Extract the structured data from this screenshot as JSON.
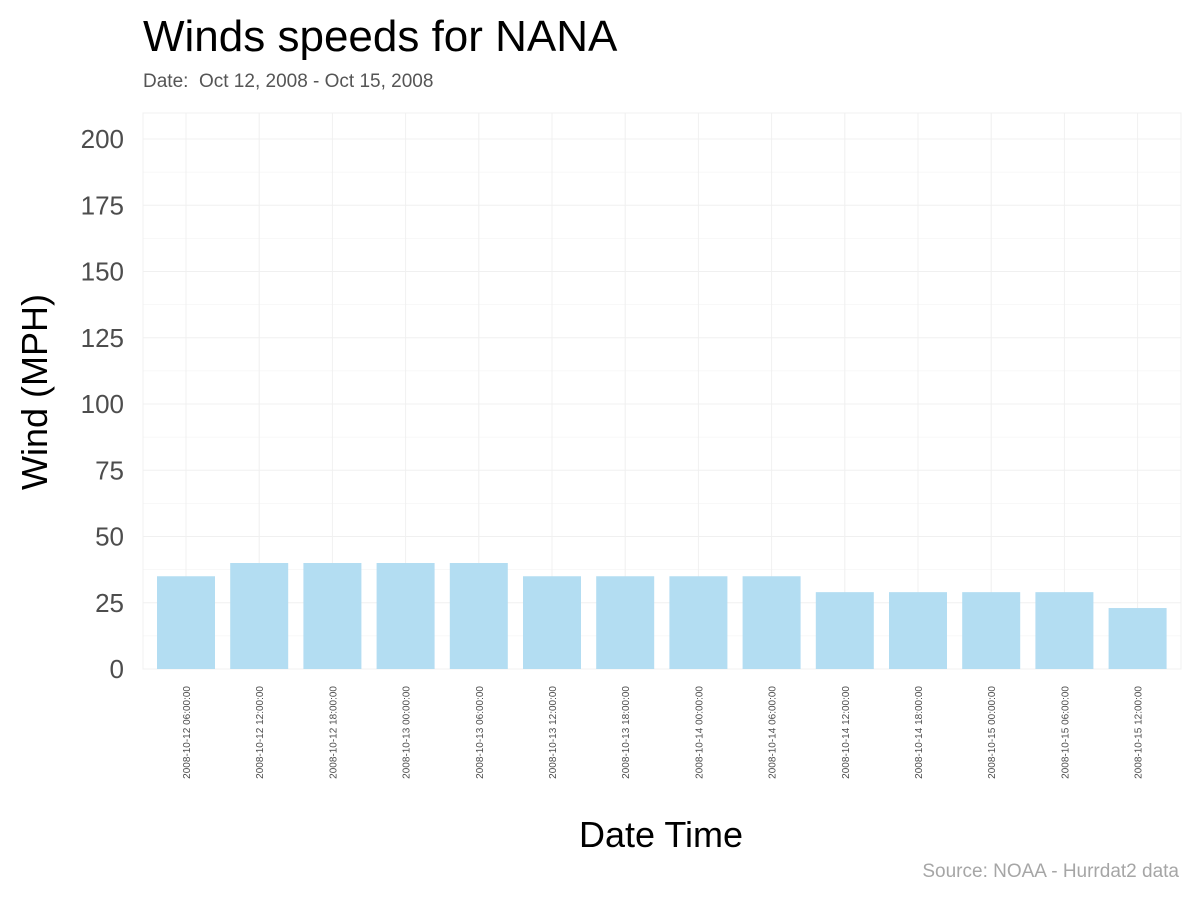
{
  "colors": {
    "bar_fill": "#b3ddf2",
    "grid": "#f0f0f0",
    "title": "#000000",
    "subtitle": "#555555",
    "caption": "#a6a6a6",
    "tick_text": "#4d4d4d"
  },
  "chart_data": {
    "type": "bar",
    "title": "Winds speeds for NANA",
    "subtitle": "Date:  Oct 12, 2008 - Oct 15, 2008",
    "caption": "Source: NOAA - Hurrdat2 data",
    "xlabel": "Date Time",
    "ylabel": "Wind (MPH)",
    "ylim": [
      0,
      200
    ],
    "yticks": [
      0,
      25,
      50,
      75,
      100,
      125,
      150,
      175,
      200
    ],
    "grid": true,
    "categories": [
      "2008-10-12 06:00:00",
      "2008-10-12 12:00:00",
      "2008-10-12 18:00:00",
      "2008-10-13 00:00:00",
      "2008-10-13 06:00:00",
      "2008-10-13 12:00:00",
      "2008-10-13 18:00:00",
      "2008-10-14 00:00:00",
      "2008-10-14 06:00:00",
      "2008-10-14 12:00:00",
      "2008-10-14 18:00:00",
      "2008-10-15 00:00:00",
      "2008-10-15 06:00:00",
      "2008-10-15 12:00:00"
    ],
    "values": [
      35,
      40,
      40,
      40,
      40,
      35,
      35,
      35,
      35,
      29,
      29,
      29,
      29,
      23
    ]
  }
}
